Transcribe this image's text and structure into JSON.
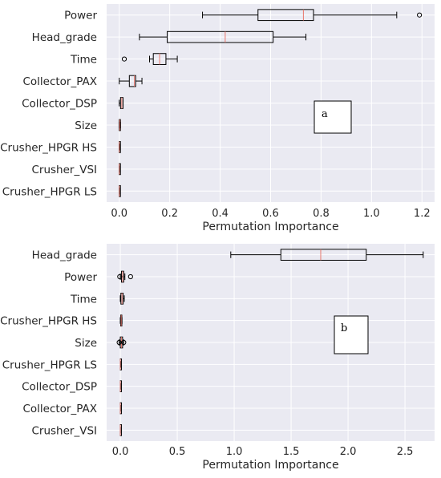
{
  "chart_data": [
    {
      "type": "boxplot",
      "orientation": "horizontal",
      "panel_label": "a",
      "xlabel": "Permutation Importance",
      "xlim": [
        -0.05,
        1.25
      ],
      "xticks": [
        0.0,
        0.2,
        0.4,
        0.6,
        0.8,
        1.0,
        1.2
      ],
      "xtick_labels": [
        "0.0",
        "0.2",
        "0.4",
        "0.6",
        "0.8",
        "1.0",
        "1.2"
      ],
      "grid": true,
      "colors": {
        "background": "#eaeaf2",
        "grid": "#ffffff",
        "box": "#000000",
        "median": "#e8776b",
        "text": "#262626"
      },
      "categories": [
        "Power",
        "Head_grade",
        "Time",
        "Collector_PAX",
        "Collector_DSP",
        "Size",
        "Crusher_HPGR HS",
        "Crusher_VSI",
        "Crusher_HPGR LS"
      ],
      "boxes": [
        {
          "label": "Power",
          "whislo": 0.33,
          "q1": 0.55,
          "med": 0.73,
          "q3": 0.77,
          "whishi": 1.1,
          "fliers": [
            1.19
          ]
        },
        {
          "label": "Head_grade",
          "whislo": 0.08,
          "q1": 0.19,
          "med": 0.42,
          "q3": 0.61,
          "whishi": 0.74,
          "fliers": []
        },
        {
          "label": "Time",
          "whislo": 0.12,
          "q1": 0.135,
          "med": 0.16,
          "q3": 0.185,
          "whishi": 0.23,
          "fliers": [
            0.02
          ]
        },
        {
          "label": "Collector_PAX",
          "whislo": 0.0,
          "q1": 0.04,
          "med": 0.06,
          "q3": 0.065,
          "whishi": 0.09,
          "fliers": []
        },
        {
          "label": "Collector_DSP",
          "whislo": 0.0,
          "q1": 0.005,
          "med": 0.01,
          "q3": 0.015,
          "whishi": 0.015,
          "fliers": []
        },
        {
          "label": "Size",
          "whislo": 0.0,
          "q1": 0.0,
          "med": 0.002,
          "q3": 0.004,
          "whishi": 0.005,
          "fliers": []
        },
        {
          "label": "Crusher_HPGR HS",
          "whislo": 0.0,
          "q1": 0.0,
          "med": 0.0,
          "q3": 0.001,
          "whishi": 0.002,
          "fliers": []
        },
        {
          "label": "Crusher_VSI",
          "whislo": 0.0,
          "q1": 0.0,
          "med": 0.0,
          "q3": 0.001,
          "whishi": 0.001,
          "fliers": []
        },
        {
          "label": "Crusher_HPGR LS",
          "whislo": 0.0,
          "q1": 0.0,
          "med": 0.0,
          "q3": 0.001,
          "whishi": 0.001,
          "fliers": []
        }
      ]
    },
    {
      "type": "boxplot",
      "orientation": "horizontal",
      "panel_label": "b",
      "xlabel": "Permutation Importance",
      "xlim": [
        -0.12,
        2.76
      ],
      "xticks": [
        0.0,
        0.5,
        1.0,
        1.5,
        2.0,
        2.5
      ],
      "xtick_labels": [
        "0.0",
        "0.5",
        "1.0",
        "1.5",
        "2.0",
        "2.5"
      ],
      "grid": true,
      "colors": {
        "background": "#eaeaf2",
        "grid": "#ffffff",
        "box": "#000000",
        "median": "#e8776b",
        "text": "#262626"
      },
      "categories": [
        "Head_grade",
        "Power",
        "Time",
        "Crusher_HPGR HS",
        "Size",
        "Crusher_HPGR LS",
        "Collector_DSP",
        "Collector_PAX",
        "Crusher_VSI"
      ],
      "boxes": [
        {
          "label": "Head_grade",
          "whislo": 0.97,
          "q1": 1.41,
          "med": 1.76,
          "q3": 2.16,
          "whishi": 2.66,
          "fliers": []
        },
        {
          "label": "Power",
          "whislo": 0.0,
          "q1": 0.01,
          "med": 0.02,
          "q3": 0.03,
          "whishi": 0.04,
          "fliers": [
            -0.005,
            0.09
          ]
        },
        {
          "label": "Time",
          "whislo": 0.0,
          "q1": 0.005,
          "med": 0.015,
          "q3": 0.025,
          "whishi": 0.035,
          "fliers": []
        },
        {
          "label": "Crusher_HPGR HS",
          "whislo": 0.0,
          "q1": 0.003,
          "med": 0.008,
          "q3": 0.012,
          "whishi": 0.015,
          "fliers": []
        },
        {
          "label": "Size",
          "whislo": -0.01,
          "q1": 0.0,
          "med": 0.01,
          "q3": 0.02,
          "whishi": 0.03,
          "fliers": [
            -0.01,
            0.03
          ]
        },
        {
          "label": "Crusher_HPGR LS",
          "whislo": 0.0,
          "q1": 0.0,
          "med": 0.0,
          "q3": 0.002,
          "whishi": 0.003,
          "fliers": []
        },
        {
          "label": "Collector_DSP",
          "whislo": 0.0,
          "q1": 0.0,
          "med": 0.0,
          "q3": 0.001,
          "whishi": 0.002,
          "fliers": []
        },
        {
          "label": "Collector_PAX",
          "whislo": 0.0,
          "q1": 0.0,
          "med": 0.0,
          "q3": 0.001,
          "whishi": 0.002,
          "fliers": []
        },
        {
          "label": "Crusher_VSI",
          "whislo": 0.0,
          "q1": 0.0,
          "med": 0.0,
          "q3": 0.001,
          "whishi": 0.001,
          "fliers": []
        }
      ]
    }
  ]
}
